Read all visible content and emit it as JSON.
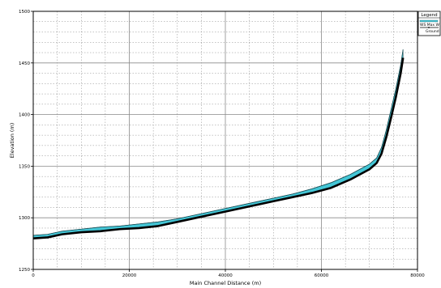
{
  "chart_data": {
    "type": "line",
    "title": "",
    "xlabel": "Main Channel Distance (m)",
    "ylabel": "Elevation (m)",
    "xlim": [
      0,
      80000
    ],
    "ylim": [
      1250,
      1500
    ],
    "x_ticks": [
      0,
      20000,
      40000,
      60000,
      80000
    ],
    "x_tick_labels": [
      "0",
      "20000",
      "40000",
      "60000",
      "80000"
    ],
    "y_ticks": [
      1250,
      1300,
      1350,
      1400,
      1450,
      1500
    ],
    "y_tick_labels": [
      "1250",
      "1300",
      "1350",
      "1400",
      "1450",
      "1500"
    ],
    "grid": true,
    "legend": {
      "title": "Legend",
      "position": "top-right",
      "entries": [
        "WS Max W",
        "Ground"
      ]
    },
    "colors": {
      "water_fill": "#44c6d6",
      "ground_line": "#000000",
      "grid": "#8a8a8a",
      "frame": "#000000"
    },
    "series": [
      {
        "name": "WS Max W",
        "x": [
          0,
          3000,
          6000,
          10000,
          14000,
          18000,
          22000,
          26000,
          30000,
          34000,
          38000,
          42000,
          46000,
          50000,
          54000,
          58000,
          62000,
          64000,
          66000,
          68000,
          70000,
          71500,
          72500,
          73500,
          74500,
          75500,
          76500,
          77000
        ],
        "values": [
          1283,
          1284,
          1287,
          1289,
          1291,
          1292,
          1294,
          1296,
          1299,
          1303,
          1307,
          1311,
          1315,
          1319,
          1323,
          1328,
          1334,
          1338,
          1342,
          1347,
          1352,
          1358,
          1368,
          1385,
          1405,
          1425,
          1448,
          1463
        ]
      },
      {
        "name": "Ground",
        "x": [
          0,
          3000,
          6000,
          10000,
          14000,
          18000,
          22000,
          26000,
          30000,
          34000,
          38000,
          42000,
          46000,
          50000,
          54000,
          58000,
          62000,
          64000,
          66000,
          68000,
          70000,
          71500,
          72500,
          73500,
          74500,
          75500,
          76500,
          77000
        ],
        "values": [
          1280,
          1281,
          1284,
          1286,
          1287,
          1289,
          1290,
          1292,
          1296,
          1300,
          1304,
          1308,
          1312,
          1316,
          1320,
          1324,
          1329,
          1333,
          1337,
          1342,
          1347,
          1353,
          1362,
          1378,
          1397,
          1417,
          1440,
          1455
        ]
      }
    ]
  }
}
